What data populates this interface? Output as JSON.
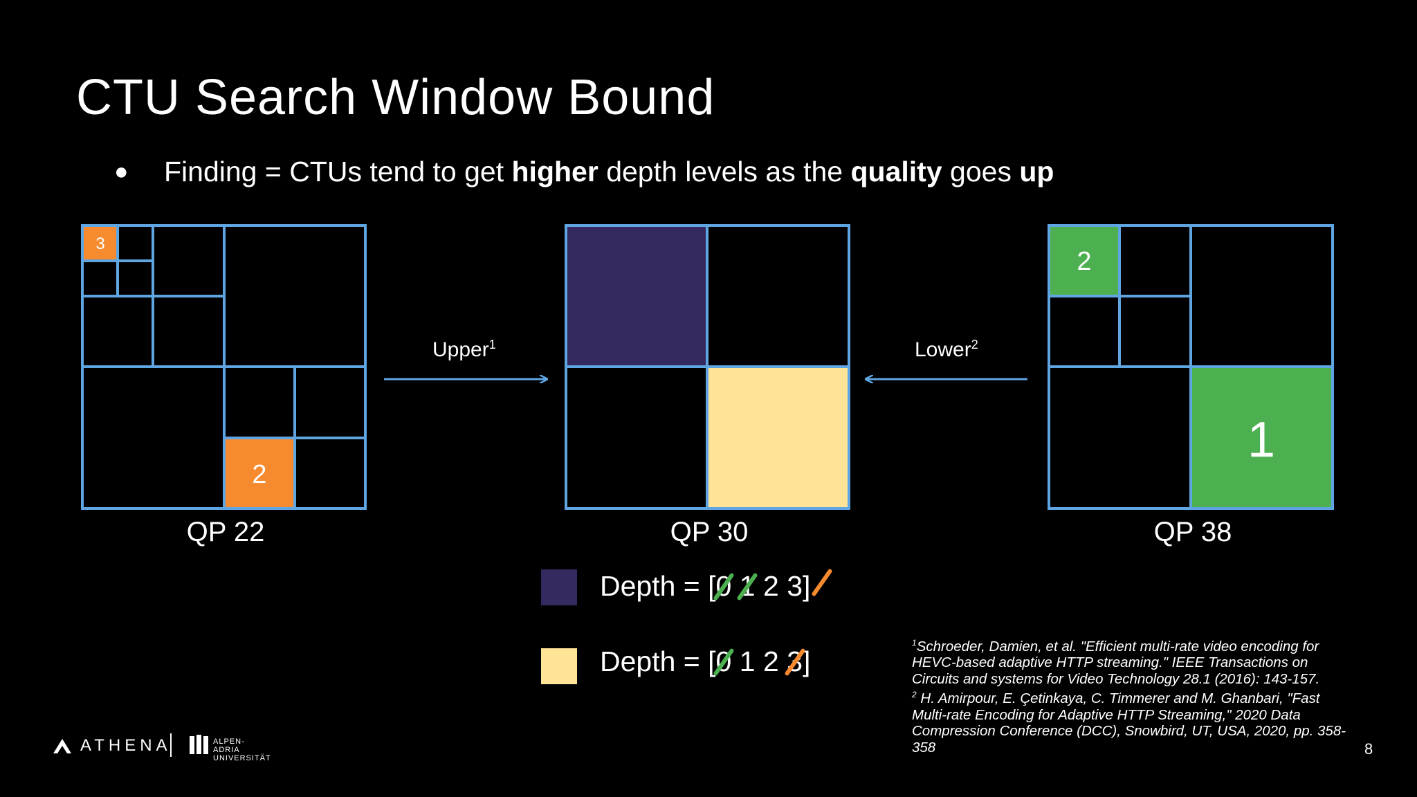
{
  "slide": {
    "title": "CTU Search Window Bound",
    "bullet": {
      "prefix": "Finding = CTUs tend to get ",
      "b1": "higher",
      "mid1": " depth levels as the ",
      "b2": "quality",
      "mid2": " goes ",
      "b3": "up"
    },
    "page_number": "8"
  },
  "diagrams": {
    "left": {
      "label": "QP 22",
      "depth3_label": "3",
      "depth2_label": "2"
    },
    "middle": {
      "label": "QP 30"
    },
    "right": {
      "label": "QP 38",
      "depth2_label": "2",
      "depth1_label": "1"
    },
    "arrow_upper": {
      "text": "Upper",
      "sup": "1"
    },
    "arrow_lower": {
      "text": "Lower",
      "sup": "2"
    }
  },
  "legend": {
    "purple": {
      "prefix": "Depth = [",
      "d0": "0",
      "sp1": " ",
      "d1": "1",
      "sp2": " ",
      "d2": "2",
      "sp3": " ",
      "d3": "3",
      "suffix": "]"
    },
    "yellow": {
      "prefix": "Depth = [",
      "d0": "0",
      "sp1": " ",
      "d1": "1",
      "sp2": " ",
      "d2": "2",
      "sp3": " ",
      "d3": "3",
      "suffix": "]"
    }
  },
  "references": [
    {
      "sup": "1",
      "text": "Schroeder, Damien, et al. \"Efficient multi-rate video encoding for HEVC-based adaptive HTTP streaming.\" IEEE Transactions on Circuits and systems for Video Technology 28.1 (2016): 143-157."
    },
    {
      "sup": "2",
      "text": " H. Amirpour, E. Çetinkaya, C. Timmerer and M. Ghanbari, \"Fast Multi-rate Encoding for Adaptive HTTP Streaming,\" 2020 Data Compression Conference (DCC), Snowbird, UT, USA, 2020, pp. 358-358"
    }
  ],
  "footer": {
    "athena": "ATHENA",
    "aau_line1": "ALPEN-ADRIA",
    "aau_line2": "UNIVERSITÄT"
  },
  "colors": {
    "background": "#000000",
    "grid_line": "#5ea5e2",
    "orange": "#f58a2e",
    "green": "#4cb050",
    "purple": "#352a60",
    "yellow": "#ffe397",
    "green_slash": "#4cb050",
    "orange_slash": "#f58a2e"
  }
}
